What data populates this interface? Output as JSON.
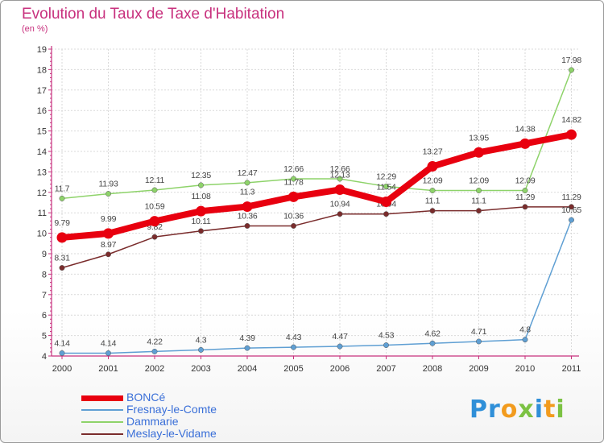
{
  "page": {
    "title": "Evolution du Taux de Taxe d'Habitation",
    "subtitle": "(en %)"
  },
  "chart_data": {
    "type": "line",
    "title": "Evolution du Taux de Taxe d'Habitation",
    "subtitle": "(en %)",
    "xlabel": "",
    "ylabel": "",
    "x": [
      "2000",
      "2001",
      "2002",
      "2003",
      "2004",
      "2005",
      "2006",
      "2007",
      "2008",
      "2009",
      "2010",
      "2011"
    ],
    "ylim": [
      4,
      19
    ],
    "yticks": [
      "4",
      "5",
      "6",
      "7",
      "8",
      "9",
      "10",
      "11",
      "12",
      "13",
      "14",
      "15",
      "16",
      "17",
      "18",
      "19"
    ],
    "grid": true,
    "legend_position": "bottom-left",
    "series": [
      {
        "name": "BONCé",
        "color": "#e8000f",
        "line_width": 8,
        "marker_radius": 6.5,
        "values": [
          9.79,
          9.99,
          10.59,
          11.08,
          11.3,
          11.78,
          12.13,
          11.54,
          13.27,
          13.95,
          14.38,
          14.82
        ],
        "labels": [
          "9.79",
          "9.99",
          "10.59",
          "11.08",
          "11.3",
          "11.78",
          "12.13",
          "11.54",
          "13.27",
          "13.95",
          "14.38",
          "14.82"
        ]
      },
      {
        "name": "Fresnay-le-Comte",
        "color": "#5f9fd3",
        "line_width": 1.5,
        "marker_radius": 3.2,
        "values": [
          4.14,
          4.14,
          4.22,
          4.3,
          4.39,
          4.43,
          4.47,
          4.53,
          4.62,
          4.71,
          4.8,
          10.65
        ],
        "labels": [
          "4.14",
          "4.14",
          "4.22",
          "4.3",
          "4.39",
          "4.43",
          "4.47",
          "4.53",
          "4.62",
          "4.71",
          "4.8",
          "10.65"
        ]
      },
      {
        "name": "Dammarie",
        "color": "#8ed36a",
        "line_width": 1.5,
        "marker_radius": 3.2,
        "values": [
          11.7,
          11.93,
          12.11,
          12.35,
          12.47,
          12.66,
          12.66,
          12.29,
          12.09,
          12.09,
          12.09,
          17.98
        ],
        "labels": [
          "11.7",
          "11.93",
          "12.11",
          "12.35",
          "12.47",
          "12.66",
          "12.66",
          "12.29",
          "12.09",
          "12.09",
          "12.09",
          "17.98"
        ]
      },
      {
        "name": "Meslay-le-Vidame",
        "color": "#7a2c2c",
        "line_width": 1.5,
        "marker_radius": 3.2,
        "values": [
          8.31,
          8.97,
          9.82,
          10.11,
          10.36,
          10.36,
          10.94,
          10.94,
          11.1,
          11.1,
          11.29,
          11.29
        ],
        "labels": [
          "8.31",
          "8.97",
          "9.82",
          "10.11",
          "10.36",
          "10.36",
          "10.94",
          "10.94",
          "11.1",
          "11.1",
          "11.29",
          "11.29"
        ]
      }
    ]
  },
  "legend": {
    "items": [
      {
        "label": "BONCé",
        "color": "#e8000f"
      },
      {
        "label": "Fresnay-le-Comte",
        "color": "#5f9fd3"
      },
      {
        "label": "Dammarie",
        "color": "#8ed36a"
      },
      {
        "label": "Meslay-le-Vidame",
        "color": "#7a2c2c"
      }
    ]
  },
  "logo": {
    "text": "Proxiti",
    "letter_colors": [
      "#2f8fd8",
      "#2f8fd8",
      "#f29b1d",
      "#7cc243",
      "#2f8fd8",
      "#f29b1d",
      "#7cc243"
    ]
  }
}
